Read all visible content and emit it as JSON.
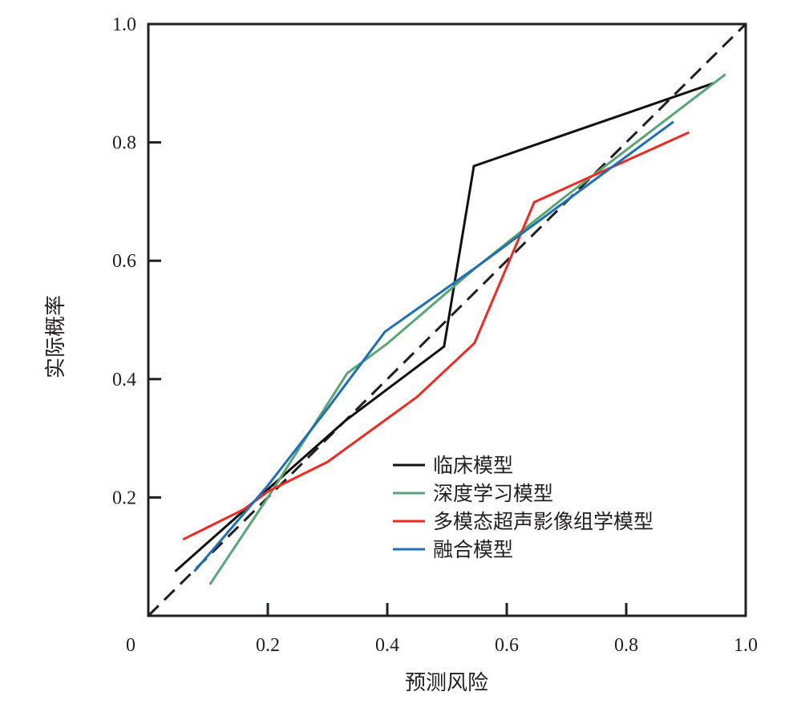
{
  "chart_data": {
    "type": "line",
    "title": "",
    "xlabel": "预测风险",
    "ylabel": "实际概率",
    "xlim": [
      0,
      1.0
    ],
    "ylim": [
      0,
      1.0
    ],
    "origin_label": "0",
    "xticks": [
      0.2,
      0.4,
      0.6,
      0.8,
      1.0
    ],
    "xtick_labels": [
      "0.2",
      "0.4",
      "0.6",
      "0.8",
      "1.0"
    ],
    "yticks": [
      0.2,
      0.4,
      0.6,
      0.8,
      1.0
    ],
    "ytick_labels": [
      "0.2",
      "0.4",
      "0.6",
      "0.8",
      "1.0"
    ],
    "grid": false,
    "legend_position": "lower-right",
    "reference_line": {
      "name": "ideal",
      "x": [
        0,
        1
      ],
      "y": [
        0,
        1
      ],
      "color": "#231f20",
      "style": "dashed"
    },
    "series": [
      {
        "name": "临床模型",
        "color": "#111111",
        "x": [
          0.045,
          0.33,
          0.495,
          0.545,
          0.946
        ],
        "y": [
          0.075,
          0.33,
          0.455,
          0.76,
          0.9
        ]
      },
      {
        "name": "深度学习模型",
        "color": "#5aa574",
        "x": [
          0.103,
          0.2,
          0.333,
          0.4,
          0.55,
          0.7,
          0.966
        ],
        "y": [
          0.053,
          0.2,
          0.41,
          0.46,
          0.59,
          0.71,
          0.915
        ]
      },
      {
        "name": "多模态超声影像组学模型",
        "color": "#ee2a24",
        "x": [
          0.058,
          0.16,
          0.2,
          0.3,
          0.45,
          0.546,
          0.646,
          0.78,
          0.905
        ],
        "y": [
          0.129,
          0.18,
          0.21,
          0.26,
          0.37,
          0.461,
          0.699,
          0.76,
          0.817
        ]
      },
      {
        "name": "融合模型",
        "color": "#1f6fb5",
        "x": [
          0.077,
          0.2,
          0.3,
          0.396,
          0.55,
          0.879
        ],
        "y": [
          0.075,
          0.22,
          0.35,
          0.48,
          0.59,
          0.835
        ]
      }
    ]
  }
}
